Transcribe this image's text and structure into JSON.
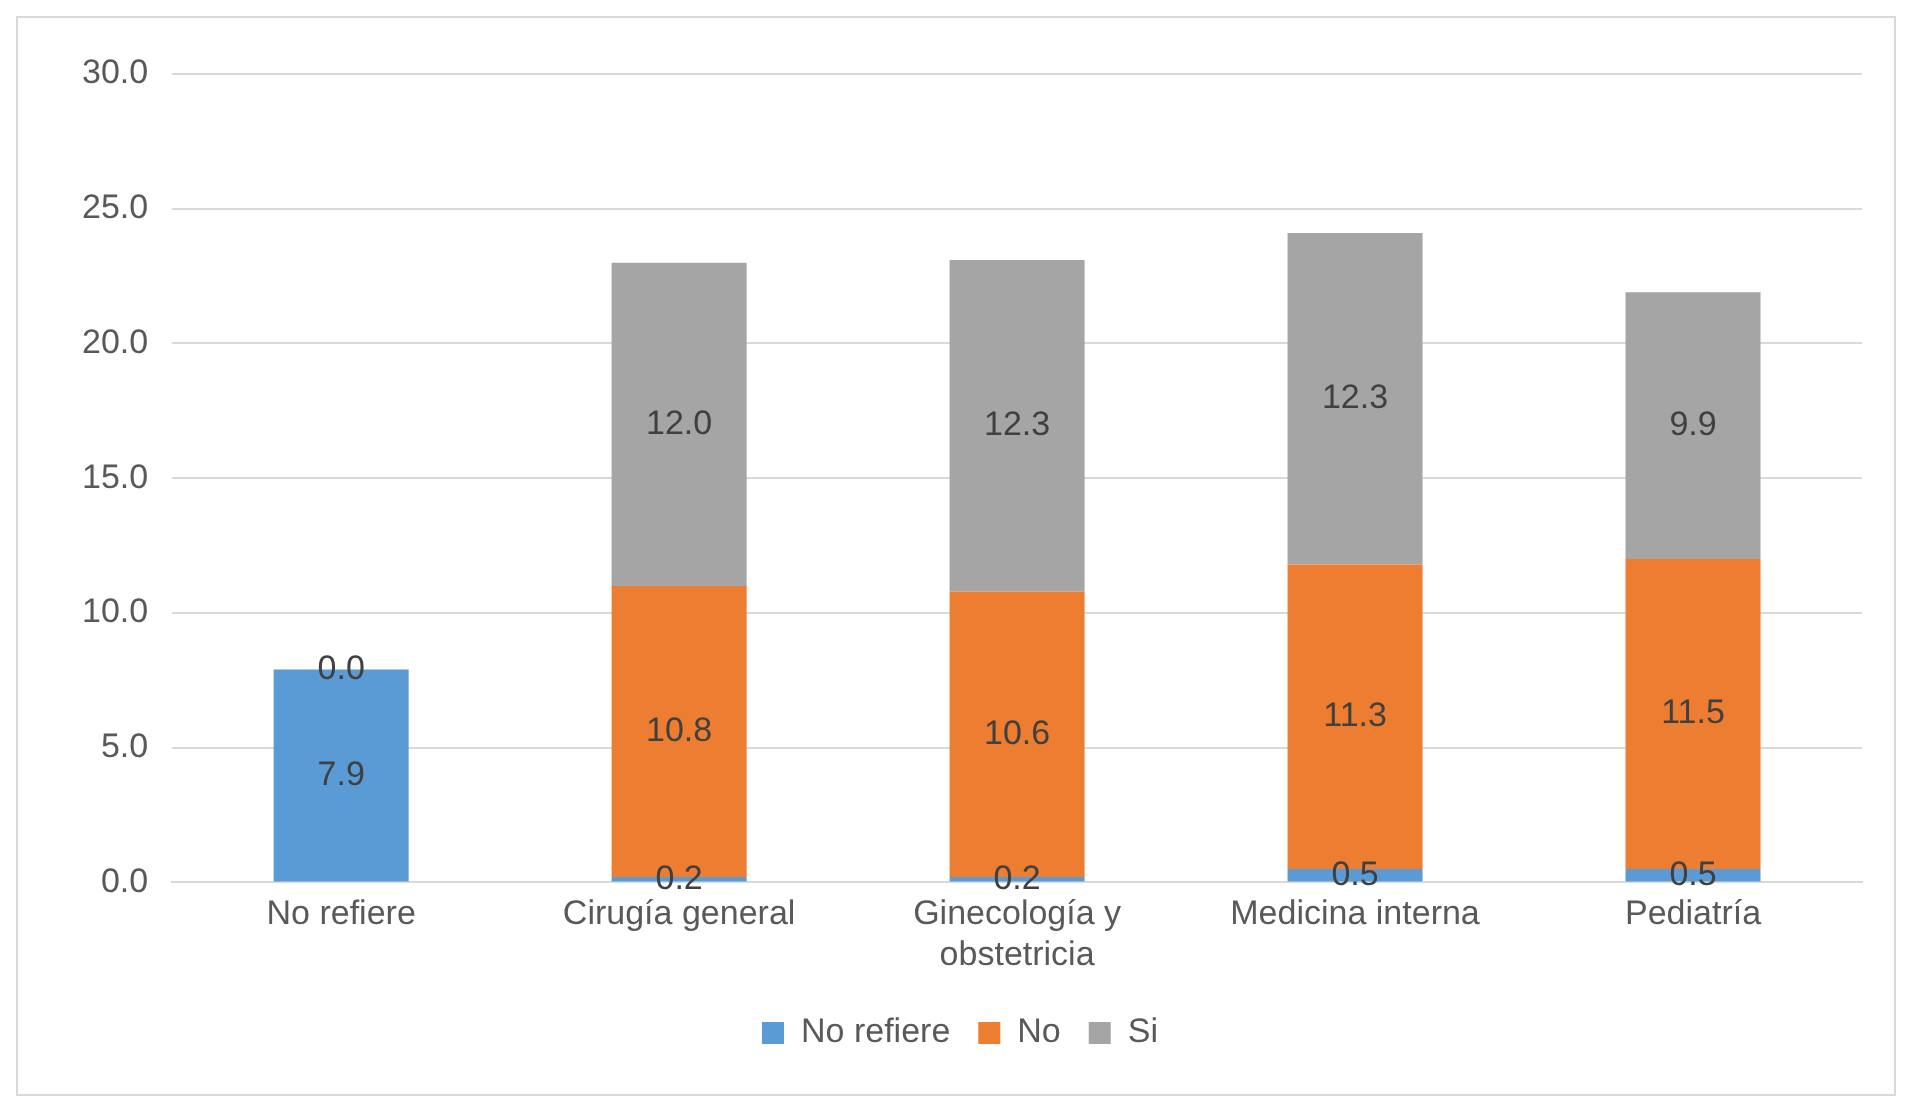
{
  "chart_data": {
    "type": "bar",
    "stacked": true,
    "categories": [
      "No refiere",
      "Cirugía general",
      "Ginecología y obstetricia",
      "Medicina interna",
      "Pediatría"
    ],
    "series": [
      {
        "name": "No refiere",
        "color": "#5b9bd5",
        "values": [
          7.9,
          0.2,
          0.2,
          0.5,
          0.5
        ],
        "value_labels": [
          "7.9",
          "0.2",
          "0.2",
          "0.5",
          "0.5"
        ]
      },
      {
        "name": "No",
        "color": "#ed7d31",
        "values": [
          0.0,
          10.8,
          10.6,
          11.3,
          11.5
        ],
        "value_labels": [
          "0.0",
          "10.8",
          "10.6",
          "11.3",
          "11.5"
        ]
      },
      {
        "name": "Si",
        "color": "#a5a5a5",
        "values": [
          0.0,
          12.0,
          12.3,
          12.3,
          9.9
        ],
        "value_labels": [
          null,
          "12.0",
          "12.3",
          "12.3",
          "9.9"
        ]
      }
    ],
    "ylim": [
      0,
      30
    ],
    "yticks": [
      {
        "value": 0,
        "label": "0.0"
      },
      {
        "value": 5,
        "label": "5.0"
      },
      {
        "value": 10,
        "label": "10.0"
      },
      {
        "value": 15,
        "label": "15.0"
      },
      {
        "value": 20,
        "label": "20.0"
      },
      {
        "value": 25,
        "label": "25.0"
      },
      {
        "value": 30,
        "label": "30.0"
      }
    ],
    "grid": "y",
    "legend": "bottom"
  }
}
